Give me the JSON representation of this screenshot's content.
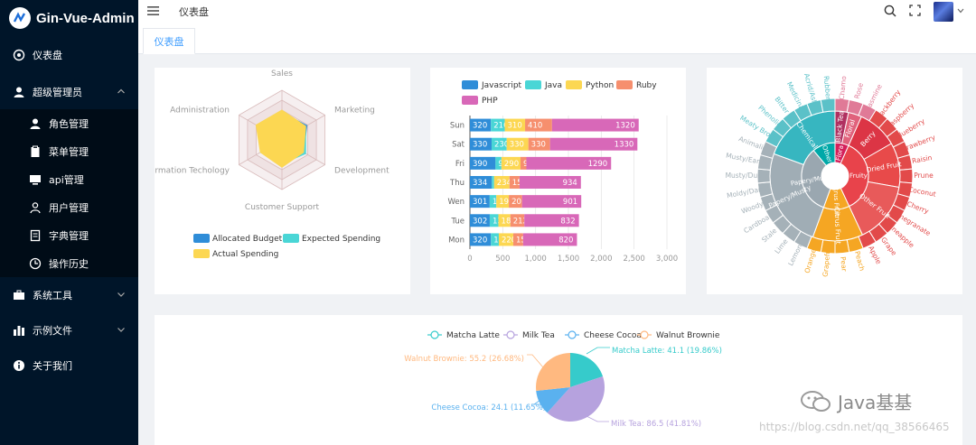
{
  "app": {
    "title": "Gin-Vue-Admin"
  },
  "sidebar": {
    "items": [
      {
        "label": "仪表盘",
        "icon": "dashboard-icon"
      },
      {
        "label": "超级管理员",
        "icon": "user-icon",
        "expanded": true,
        "children": [
          {
            "label": "角色管理",
            "icon": "user-icon"
          },
          {
            "label": "菜单管理",
            "icon": "clipboard-icon"
          },
          {
            "label": "api管理",
            "icon": "monitor-icon"
          },
          {
            "label": "用户管理",
            "icon": "user-outline-icon"
          },
          {
            "label": "字典管理",
            "icon": "document-icon"
          },
          {
            "label": "操作历史",
            "icon": "clock-icon"
          }
        ]
      },
      {
        "label": "系统工具",
        "icon": "toolbox-icon"
      },
      {
        "label": "示例文件",
        "icon": "chart-icon"
      },
      {
        "label": "关于我们",
        "icon": "info-icon"
      }
    ]
  },
  "header": {
    "breadcrumb": "仪表盘"
  },
  "tabs": [
    {
      "label": "仪表盘",
      "active": true
    }
  ],
  "watermark": {
    "text": "https://blog.csdn.net/qq_38566465"
  },
  "wechat": {
    "label": "Java基基"
  },
  "colors": {
    "sidebar_bg": "#001529",
    "accent": "#409eff"
  },
  "chart_data": [
    {
      "type": "radar",
      "indicators": [
        "Sales",
        "Marketing",
        "Development",
        "Customer Support",
        "Information Techology",
        "Administration"
      ],
      "series": [
        {
          "name": "Allocated Budget",
          "color": "#2f8dd8",
          "values": [
            0.55,
            0.58,
            0.5,
            0.5,
            0.4,
            0.52
          ]
        },
        {
          "name": "Expected Spending",
          "color": "#4ad6d6",
          "values": [
            0.52,
            0.55,
            0.55,
            0.48,
            0.5,
            0.52
          ]
        },
        {
          "name": "Actual Spending",
          "color": "#fcd752",
          "values": [
            0.6,
            0.55,
            0.5,
            0.55,
            0.5,
            0.6
          ]
        }
      ]
    },
    {
      "type": "bar",
      "stacked": true,
      "orientation": "horizontal",
      "categories": [
        "Sun",
        "Sat",
        "Fri",
        "Thu",
        "Wen",
        "Tue",
        "Mon"
      ],
      "series": [
        {
          "name": "Javascript",
          "color": "#2f8dd8",
          "values": [
            320,
            330,
            390,
            334,
            301,
            302,
            320
          ]
        },
        {
          "name": "Java",
          "color": "#4ad6d6",
          "values": [
            210,
            230,
            90,
            34,
            101,
            132,
            120
          ]
        },
        {
          "name": "Python",
          "color": "#fcd752",
          "values": [
            310,
            330,
            290,
            234,
            191,
            182,
            220
          ]
        },
        {
          "name": "Ruby",
          "color": "#f68f6e",
          "values": [
            410,
            330,
            90,
            154,
            201,
            212,
            150
          ]
        },
        {
          "name": "PHP",
          "color": "#d868b8",
          "values": [
            1320,
            1330,
            1290,
            934,
            901,
            832,
            820
          ]
        }
      ],
      "xticks": [
        "0",
        "500",
        "1,000",
        "1,500",
        "2,000",
        "2,500",
        "3,000"
      ],
      "xlim": [
        0,
        3000
      ]
    },
    {
      "type": "sunburst",
      "inner": [
        {
          "name": "Flora",
          "color": "#d4205a"
        },
        {
          "name": "Fruity",
          "color": "#e8434b"
        },
        {
          "name": "Citrus Fruit",
          "color": "#f5a623"
        },
        {
          "name": "Papery/Musty",
          "color": "#9aa7b0"
        },
        {
          "name": "Other",
          "color": "#00a8a8"
        }
      ],
      "middle": [
        {
          "name": "Black Tea",
          "color": "#b03060"
        },
        {
          "name": "Floral",
          "color": "#e0627c"
        },
        {
          "name": "Berry",
          "color": "#dc3545"
        },
        {
          "name": "Dried Fruit",
          "color": "#e84a4a"
        },
        {
          "name": "Other Fruit",
          "color": "#e85a5a"
        },
        {
          "name": "Citrus Fruit",
          "color": "#f5a623"
        },
        {
          "name": "Papery/Musty",
          "color": "#a0adb5"
        },
        {
          "name": "Chemical",
          "color": "#37b6c0"
        }
      ],
      "outer": [
        "Chamo",
        "Rose",
        "Jasmine",
        "Blackberry",
        "Raspberry",
        "Blueberry",
        "Strawberry",
        "Raisin",
        "Prune",
        "Coconut",
        "Cherry",
        "Pomegranate",
        "Pineapple",
        "Grape",
        "Apple",
        "Peach",
        "Pear",
        "Grapefr",
        "Orange",
        "Lemon",
        "Lime",
        "Stale",
        "Cardboard",
        "Woody",
        "Moldy/Damp",
        "Musty/Dusty",
        "Musty/Earthy",
        "Animalic",
        "Meaty Brothy",
        "Phenolic",
        "Bitter",
        "Medicinal",
        "Acrid/Ashy",
        "Rubber"
      ]
    },
    {
      "type": "pie",
      "legend": [
        "Matcha Latte",
        "Milk Tea",
        "Cheese Cocoa",
        "Walnut Brownie"
      ],
      "slices": [
        {
          "name": "Matcha Latte",
          "value": 41.1,
          "label": "Matcha Latte: 41.1 (19.86%)",
          "color": "#36cbcb"
        },
        {
          "name": "Milk Tea",
          "value": 86.5,
          "label": "Milk Tea: 86.5 (41.81%)",
          "color": "#b6a2de"
        },
        {
          "name": "Cheese Cocoa",
          "value": 24.1,
          "label": "Cheese Cocoa: 24.1 (11.65%)",
          "color": "#5ab1ef"
        },
        {
          "name": "Walnut Brownie",
          "value": 55.2,
          "label": "Walnut Brownie: 55.2 (26.68%)",
          "color": "#ffb980"
        }
      ]
    }
  ]
}
